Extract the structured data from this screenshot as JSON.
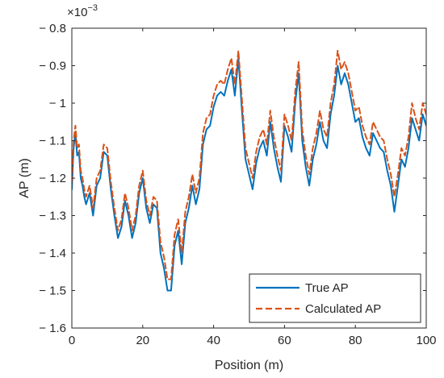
{
  "chart_data": {
    "type": "line",
    "title": "",
    "xlabel": "Position (m)",
    "ylabel": "AP (m)",
    "exponent_label": "×10",
    "exponent_power": "−3",
    "xlim": [
      0,
      100
    ],
    "ylim": [
      -1.6,
      -0.8
    ],
    "xticks": [
      0,
      20,
      40,
      60,
      80,
      100
    ],
    "xtick_labels": [
      "0",
      "20",
      "40",
      "60",
      "80",
      "100"
    ],
    "yticks": [
      -0.8,
      -0.9,
      -1.0,
      -1.1,
      -1.2,
      -1.3,
      -1.4,
      -1.5,
      -1.6
    ],
    "ytick_labels": [
      "− 0.8",
      "− 0.9",
      "− 1",
      "− 1.1",
      "− 1.2",
      "− 1.3",
      "− 1.4",
      "− 1.5",
      "− 1.6"
    ],
    "y_scale_note": "values ×10^-3",
    "grid": false,
    "legend_position": "bottom-right",
    "series": [
      {
        "name": "True AP",
        "color": "#0072BD",
        "style": "solid",
        "x": [
          0,
          0.5,
          1,
          1.5,
          2,
          2.5,
          3,
          3.5,
          4,
          5,
          6,
          7,
          8,
          9,
          10,
          11,
          12,
          13,
          14,
          15,
          16,
          17,
          18,
          19,
          20,
          21,
          22,
          23,
          24,
          25,
          26,
          27,
          28,
          29,
          30,
          31,
          32,
          33,
          34,
          35,
          36,
          37,
          38,
          39,
          40,
          41,
          42,
          43,
          44,
          45,
          46,
          47,
          48,
          49,
          50,
          51,
          52,
          53,
          54,
          55,
          56,
          57,
          58,
          59,
          60,
          61,
          62,
          63,
          64,
          65,
          66,
          67,
          68,
          69,
          70,
          71,
          72,
          73,
          74,
          75,
          76,
          77,
          78,
          79,
          80,
          81,
          82,
          83,
          84,
          85,
          86,
          87,
          88,
          89,
          90,
          91,
          92,
          93,
          94,
          95,
          96,
          97,
          98,
          99,
          100
        ],
        "values": [
          -1.23,
          -1.12,
          -1.08,
          -1.14,
          -1.13,
          -1.2,
          -1.22,
          -1.25,
          -1.27,
          -1.24,
          -1.3,
          -1.22,
          -1.2,
          -1.13,
          -1.14,
          -1.23,
          -1.3,
          -1.36,
          -1.33,
          -1.26,
          -1.3,
          -1.36,
          -1.32,
          -1.24,
          -1.2,
          -1.28,
          -1.32,
          -1.27,
          -1.28,
          -1.4,
          -1.44,
          -1.5,
          -1.5,
          -1.38,
          -1.34,
          -1.43,
          -1.32,
          -1.28,
          -1.22,
          -1.27,
          -1.23,
          -1.11,
          -1.07,
          -1.06,
          -1.01,
          -0.98,
          -0.97,
          -0.98,
          -0.94,
          -0.91,
          -0.98,
          -0.88,
          -1.02,
          -1.15,
          -1.19,
          -1.23,
          -1.16,
          -1.12,
          -1.1,
          -1.14,
          -1.05,
          -1.12,
          -1.17,
          -1.21,
          -1.06,
          -1.09,
          -1.13,
          -1.0,
          -0.92,
          -1.1,
          -1.17,
          -1.22,
          -1.15,
          -1.11,
          -1.05,
          -1.1,
          -1.12,
          -1.03,
          -0.98,
          -0.9,
          -0.95,
          -0.92,
          -0.95,
          -1.0,
          -1.05,
          -1.04,
          -1.09,
          -1.12,
          -1.14,
          -1.08,
          -1.1,
          -1.12,
          -1.13,
          -1.18,
          -1.22,
          -1.29,
          -1.22,
          -1.15,
          -1.17,
          -1.12,
          -1.04,
          -1.07,
          -1.1,
          -1.03,
          -1.06
        ]
      },
      {
        "name": "Calculated AP",
        "color": "#D95319",
        "style": "dashed",
        "x": [
          0,
          0.5,
          1,
          1.5,
          2,
          2.5,
          3,
          3.5,
          4,
          5,
          6,
          7,
          8,
          9,
          10,
          11,
          12,
          13,
          14,
          15,
          16,
          17,
          18,
          19,
          20,
          21,
          22,
          23,
          24,
          25,
          26,
          27,
          28,
          29,
          30,
          31,
          32,
          33,
          34,
          35,
          36,
          37,
          38,
          39,
          40,
          41,
          42,
          43,
          44,
          45,
          46,
          47,
          48,
          49,
          50,
          51,
          52,
          53,
          54,
          55,
          56,
          57,
          58,
          59,
          60,
          61,
          62,
          63,
          64,
          65,
          66,
          67,
          68,
          69,
          70,
          71,
          72,
          73,
          74,
          75,
          76,
          77,
          78,
          79,
          80,
          81,
          82,
          83,
          84,
          85,
          86,
          87,
          88,
          89,
          90,
          91,
          92,
          93,
          94,
          95,
          96,
          97,
          98,
          99,
          100
        ],
        "values": [
          -1.21,
          -1.1,
          -1.06,
          -1.12,
          -1.11,
          -1.18,
          -1.2,
          -1.23,
          -1.25,
          -1.22,
          -1.28,
          -1.2,
          -1.18,
          -1.11,
          -1.12,
          -1.21,
          -1.28,
          -1.34,
          -1.31,
          -1.24,
          -1.28,
          -1.34,
          -1.3,
          -1.22,
          -1.18,
          -1.26,
          -1.3,
          -1.25,
          -1.26,
          -1.37,
          -1.41,
          -1.47,
          -1.47,
          -1.35,
          -1.31,
          -1.4,
          -1.29,
          -1.25,
          -1.19,
          -1.24,
          -1.2,
          -1.08,
          -1.04,
          -1.03,
          -0.98,
          -0.95,
          -0.94,
          -0.95,
          -0.91,
          -0.88,
          -0.95,
          -0.86,
          -0.99,
          -1.12,
          -1.16,
          -1.2,
          -1.13,
          -1.09,
          -1.07,
          -1.11,
          -1.02,
          -1.09,
          -1.14,
          -1.18,
          -1.03,
          -1.06,
          -1.1,
          -0.97,
          -0.89,
          -1.07,
          -1.14,
          -1.19,
          -1.12,
          -1.08,
          -1.02,
          -1.07,
          -1.09,
          -1.0,
          -0.95,
          -0.86,
          -0.91,
          -0.89,
          -0.92,
          -0.97,
          -1.02,
          -1.01,
          -1.06,
          -1.09,
          -1.11,
          -1.05,
          -1.07,
          -1.09,
          -1.1,
          -1.15,
          -1.19,
          -1.25,
          -1.19,
          -1.12,
          -1.14,
          -1.09,
          -1.0,
          -1.04,
          -1.07,
          -1.0,
          -1.03
        ]
      }
    ]
  }
}
